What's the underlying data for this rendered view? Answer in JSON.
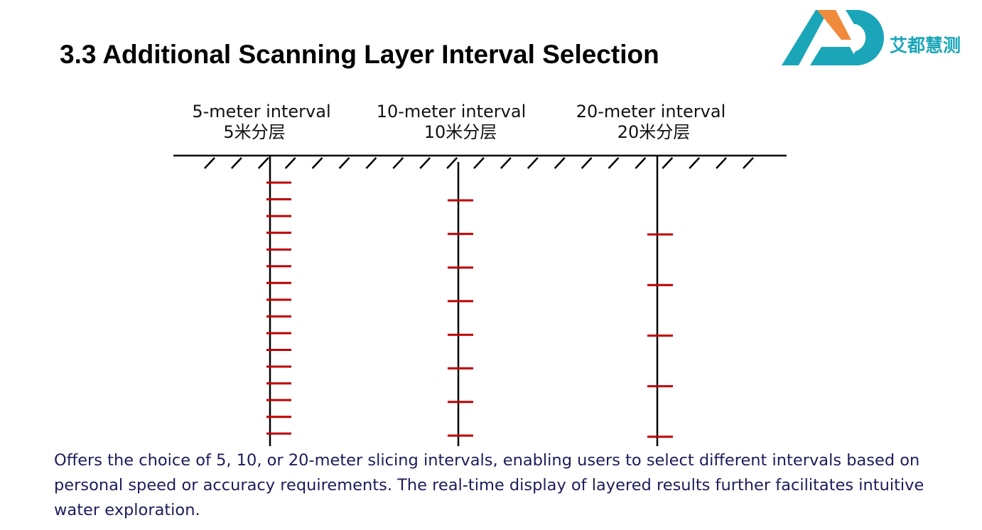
{
  "header": {
    "title": "3.3 Additional Scanning Layer Interval Selection",
    "logo_text": "艾都慧测"
  },
  "columns": [
    {
      "label": "5-meter interval",
      "label_zh": "5米分层"
    },
    {
      "label": "10-meter interval",
      "label_zh": "10米分层"
    },
    {
      "label": "20-meter interval",
      "label_zh": "20米分层"
    }
  ],
  "description": [
    "Offers the choice of 5, 10, or 20-meter slicing intervals, enabling users to select different intervals based on",
    "personal speed or accuracy requirements. The real-time display of layered results further facilitates intuitive",
    "water exploration."
  ]
}
